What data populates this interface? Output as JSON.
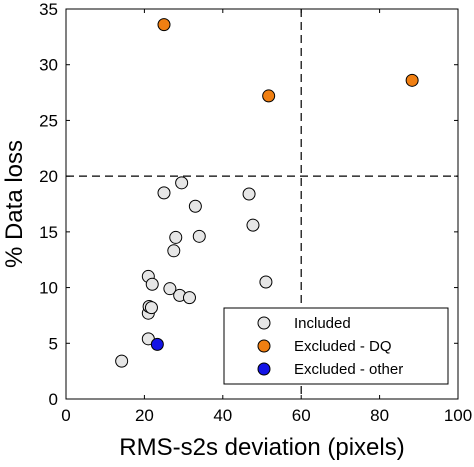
{
  "chart_data": {
    "type": "scatter",
    "title": "",
    "xlabel": "RMS-s2s deviation (pixels)",
    "ylabel": "% Data loss",
    "xlim": [
      0,
      100
    ],
    "ylim": [
      0,
      35
    ],
    "xticks": [
      0,
      20,
      40,
      60,
      80,
      100
    ],
    "yticks": [
      0,
      5,
      10,
      15,
      20,
      25,
      30,
      35
    ],
    "grid": false,
    "legend_position": "bottom-right",
    "reference_lines": {
      "x": 60,
      "y": 20,
      "style": "dashed"
    },
    "series": [
      {
        "name": "Included",
        "color": "#e6e6e6",
        "points": [
          {
            "x": 14.2,
            "y": 3.4
          },
          {
            "x": 21.0,
            "y": 5.4
          },
          {
            "x": 21.0,
            "y": 7.7
          },
          {
            "x": 21.2,
            "y": 8.3
          },
          {
            "x": 21.8,
            "y": 8.2
          },
          {
            "x": 21.0,
            "y": 11.0
          },
          {
            "x": 22.0,
            "y": 10.3
          },
          {
            "x": 25.0,
            "y": 18.5
          },
          {
            "x": 26.5,
            "y": 9.9
          },
          {
            "x": 27.5,
            "y": 13.3
          },
          {
            "x": 28.0,
            "y": 14.5
          },
          {
            "x": 29.0,
            "y": 9.3
          },
          {
            "x": 29.5,
            "y": 19.4
          },
          {
            "x": 31.5,
            "y": 9.1
          },
          {
            "x": 33.0,
            "y": 17.3
          },
          {
            "x": 34.0,
            "y": 14.6
          },
          {
            "x": 46.7,
            "y": 18.4
          },
          {
            "x": 47.7,
            "y": 15.6
          },
          {
            "x": 51.0,
            "y": 10.5
          }
        ]
      },
      {
        "name": "Excluded - DQ",
        "color": "#f07f12",
        "points": [
          {
            "x": 25.0,
            "y": 33.6
          },
          {
            "x": 51.7,
            "y": 27.2
          },
          {
            "x": 88.3,
            "y": 28.6
          }
        ]
      },
      {
        "name": "Excluded - other",
        "color": "#1414e6",
        "points": [
          {
            "x": 23.3,
            "y": 4.9
          }
        ]
      }
    ]
  }
}
